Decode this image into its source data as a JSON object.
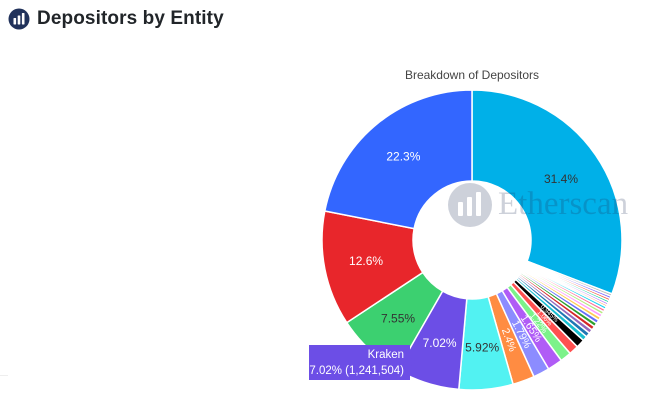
{
  "page": {
    "title": "Depositors by Entity",
    "icon": "etherscan-logo-icon"
  },
  "chart_data": {
    "type": "pie",
    "hole": true,
    "title": "Breakdown of Depositors",
    "watermark": "Etherscan",
    "slices": [
      {
        "label": "",
        "value": 31.4,
        "text": "31.4%",
        "color": "#00b0e8"
      },
      {
        "label": "",
        "value": 0.28,
        "text": "",
        "color": "#b7b7b7"
      },
      {
        "label": "",
        "value": 0.27,
        "text": "",
        "color": "#7b61ff"
      },
      {
        "label": "",
        "value": 0.26,
        "text": "",
        "color": "#ef553b"
      },
      {
        "label": "",
        "value": 0.25,
        "text": "",
        "color": "#00cc96"
      },
      {
        "label": "",
        "value": 0.24,
        "text": "",
        "color": "#ab63fa"
      },
      {
        "label": "",
        "value": 0.23,
        "text": "",
        "color": "#ffa15a"
      },
      {
        "label": "",
        "value": 0.3,
        "text": "",
        "color": "#19d3f3"
      },
      {
        "label": "",
        "value": 0.31,
        "text": "",
        "color": "#ff6692"
      },
      {
        "label": "",
        "value": 0.33,
        "text": "",
        "color": "#b6e880"
      },
      {
        "label": "",
        "value": 0.35,
        "text": "",
        "color": "#ff97ff"
      },
      {
        "label": "",
        "value": 0.38,
        "text": "",
        "color": "#fecb52"
      },
      {
        "label": "",
        "value": 0.4,
        "text": "",
        "color": "#636efa"
      },
      {
        "label": "",
        "value": 0.42,
        "text": "",
        "color": "#2ca02c"
      },
      {
        "label": "",
        "value": 0.44,
        "text": "",
        "color": "#d62728"
      },
      {
        "label": "",
        "value": 0.46,
        "text": "",
        "color": "#9467bd"
      },
      {
        "label": "",
        "value": 0.5,
        "text": "",
        "color": "#1f77b4"
      },
      {
        "label": "",
        "value": 0.52,
        "text": "",
        "color": "#17becf"
      },
      {
        "label": "",
        "value": 0.945,
        "text": "0.945%",
        "color": "#000000"
      },
      {
        "label": "",
        "value": 1.06,
        "text": "1.06%",
        "color": "#ff5050"
      },
      {
        "label": "",
        "value": 1.22,
        "text": "1.22%",
        "color": "#7cf28a"
      },
      {
        "label": "",
        "value": 1.65,
        "text": "1.65%",
        "color": "#b05cf6"
      },
      {
        "label": "",
        "value": 1.79,
        "text": "1.79%",
        "color": "#8c8cff"
      },
      {
        "label": "",
        "value": 2.4,
        "text": "2.4%",
        "color": "#ff8c42"
      },
      {
        "label": "",
        "value": 5.92,
        "text": "5.92%",
        "color": "#52f2f2"
      },
      {
        "label": "Kraken",
        "value": 7.02,
        "text": "7.02%",
        "color": "#6c4ee6"
      },
      {
        "label": "",
        "value": 7.55,
        "text": "7.55%",
        "color": "#3cd070"
      },
      {
        "label": "",
        "value": 12.6,
        "text": "12.6%",
        "color": "#e8262b"
      },
      {
        "label": "",
        "value": 22.3,
        "text": "22.3%",
        "color": "#3366ff"
      }
    ],
    "hover": {
      "label": "Kraken",
      "detail": "7.02% (1,241,504)"
    }
  }
}
